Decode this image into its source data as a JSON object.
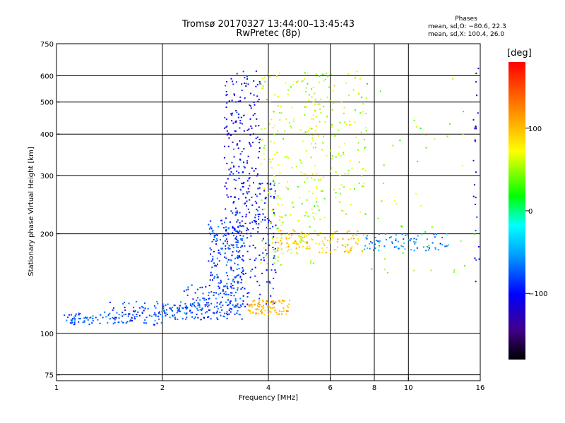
{
  "title": "Tromsø 20170327 13:44:00–13:45:43",
  "subtitle": "RwPretec (8p)",
  "phases": {
    "title": "Phases",
    "stat_o": "mean, sd,O: −80.6, 22.3",
    "stat_x": "mean, sd,X: 100.4, 26.0"
  },
  "colorbar": {
    "label": "[deg]",
    "ticks": [
      {
        "value": 100,
        "label": "100"
      },
      {
        "value": 0,
        "label": "0"
      },
      {
        "value": -100,
        "label": "−100"
      }
    ]
  },
  "chart_data": {
    "type": "scatter",
    "title": "Tromsø 20170327 13:44:00–13:45:43",
    "subtitle": "RwPretec (8p)",
    "xlabel": "Frequency [MHz]",
    "ylabel": "Stationary phase Virtual Height [km]",
    "xscale": "log",
    "yscale": "log",
    "xlim": [
      1,
      16
    ],
    "ylim": [
      72,
      750
    ],
    "grid": true,
    "xticks": [
      {
        "value": 1,
        "label": "1"
      },
      {
        "value": 2,
        "label": "2"
      },
      {
        "value": 4,
        "label": "4"
      },
      {
        "value": 6,
        "label": "6"
      },
      {
        "value": 8,
        "label": "8"
      },
      {
        "value": 10,
        "label": "10"
      },
      {
        "value": 16,
        "label": "16"
      }
    ],
    "yticks": [
      {
        "value": 75,
        "label": "75"
      },
      {
        "value": 100,
        "label": "100"
      },
      {
        "value": 200,
        "label": "200"
      },
      {
        "value": 300,
        "label": "300"
      },
      {
        "value": 400,
        "label": "400"
      },
      {
        "value": 500,
        "label": "500"
      },
      {
        "value": 600,
        "label": "600"
      },
      {
        "value": 750,
        "label": "750"
      }
    ],
    "color_scale": {
      "min": -180,
      "max": 180,
      "unit": "deg"
    },
    "clusters": [
      {
        "f": [
          1.05,
          2.0
        ],
        "h": [
          106,
          116
        ],
        "phase": -75,
        "count": 110
      },
      {
        "f": [
          1.4,
          2.3
        ],
        "h": [
          112,
          125
        ],
        "phase": -85,
        "count": 45
      },
      {
        "f": [
          2.0,
          3.4
        ],
        "h": [
          110,
          125
        ],
        "phase": -78,
        "count": 130
      },
      {
        "f": [
          2.3,
          3.4
        ],
        "h": [
          120,
          140
        ],
        "phase": -85,
        "count": 90
      },
      {
        "f": [
          2.7,
          3.4
        ],
        "h": [
          140,
          220
        ],
        "phase": -80,
        "count": 170
      },
      {
        "f": [
          3.0,
          3.8
        ],
        "h": [
          200,
          620
        ],
        "phase": -105,
        "count": 220
      },
      {
        "f": [
          3.2,
          4.2
        ],
        "h": [
          120,
          300
        ],
        "phase": -90,
        "count": 160
      },
      {
        "f": [
          3.5,
          4.6
        ],
        "h": [
          114,
          126
        ],
        "phase": 105,
        "count": 90
      },
      {
        "f": [
          3.8,
          5.5
        ],
        "h": [
          160,
          620
        ],
        "phase": 60,
        "count": 190
      },
      {
        "f": [
          4.2,
          7.5
        ],
        "h": [
          175,
          205
        ],
        "phase": 95,
        "count": 130
      },
      {
        "f": [
          5.0,
          7.6
        ],
        "h": [
          220,
          620
        ],
        "phase": 55,
        "count": 160
      },
      {
        "f": [
          7.5,
          13.0
        ],
        "h": [
          178,
          200
        ],
        "phase": -60,
        "count": 80
      },
      {
        "f": [
          7.5,
          15.5
        ],
        "h": [
          150,
          620
        ],
        "phase": 40,
        "count": 45
      },
      {
        "f": [
          15.3,
          15.9
        ],
        "h": [
          140,
          640
        ],
        "phase": -110,
        "count": 25
      }
    ]
  }
}
